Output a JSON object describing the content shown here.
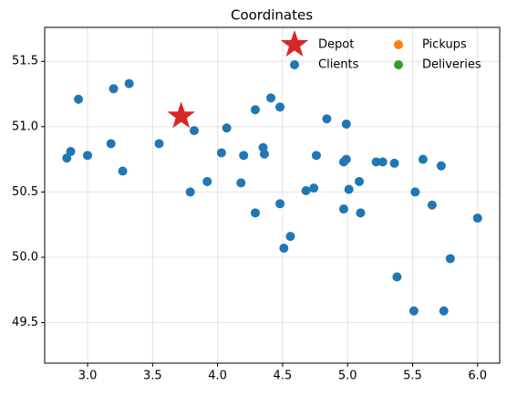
{
  "chart_data": {
    "type": "scatter",
    "title": "Coordinates",
    "xlim": [
      2.67,
      6.17
    ],
    "ylim": [
      49.19,
      51.76
    ],
    "xticks": [
      {
        "value": 3,
        "label": "3.0"
      },
      3.5,
      {
        "value": 4,
        "label": "4.0"
      },
      4.5,
      {
        "value": 5,
        "label": "5.0"
      },
      5.5,
      {
        "value": 6,
        "label": "6.0"
      }
    ],
    "yticks": [
      49.5,
      {
        "value": 50,
        "label": "50.0"
      },
      50.5,
      {
        "value": 51,
        "label": "51.0"
      },
      51.5
    ],
    "grid": true,
    "legend": "upper right",
    "series": [
      {
        "name": "Depot",
        "color": "#d62728",
        "marker": "star",
        "x": [
          3.72
        ],
        "y": [
          51.08
        ]
      },
      {
        "name": "Clients",
        "color": "#1f77b4",
        "marker": "circle",
        "x": [
          2.93,
          2.87,
          2.84,
          3.0,
          3.2,
          3.32,
          3.18,
          3.27,
          3.55,
          3.82,
          3.79,
          3.92,
          4.07,
          4.03,
          4.2,
          4.18,
          4.29,
          4.41,
          4.48,
          4.35,
          4.36,
          4.29,
          4.48,
          4.56,
          4.51,
          4.76,
          4.84,
          4.68,
          4.74,
          4.99,
          4.99,
          4.97,
          5.01,
          4.97,
          5.09,
          5.1,
          5.22,
          5.27,
          5.36,
          5.58,
          5.72,
          5.52,
          5.65,
          6.0,
          5.79,
          5.38,
          5.51,
          5.74
        ],
        "y": [
          51.21,
          50.81,
          50.76,
          50.78,
          51.29,
          51.33,
          50.87,
          50.66,
          50.87,
          50.97,
          50.5,
          50.58,
          50.99,
          50.8,
          50.78,
          50.57,
          51.13,
          51.22,
          51.15,
          50.84,
          50.79,
          50.34,
          50.41,
          50.16,
          50.07,
          50.78,
          51.06,
          50.51,
          50.53,
          51.02,
          50.75,
          50.73,
          50.52,
          50.37,
          50.58,
          50.34,
          50.73,
          50.73,
          50.72,
          50.75,
          50.7,
          50.5,
          50.4,
          50.3,
          49.99,
          49.85,
          49.59,
          49.59
        ]
      },
      {
        "name": "Pickups",
        "color": "#ff7f0e",
        "marker": "circle",
        "x": [],
        "y": []
      },
      {
        "name": "Deliveries",
        "color": "#2ca02c",
        "marker": "circle",
        "x": [],
        "y": []
      }
    ]
  }
}
